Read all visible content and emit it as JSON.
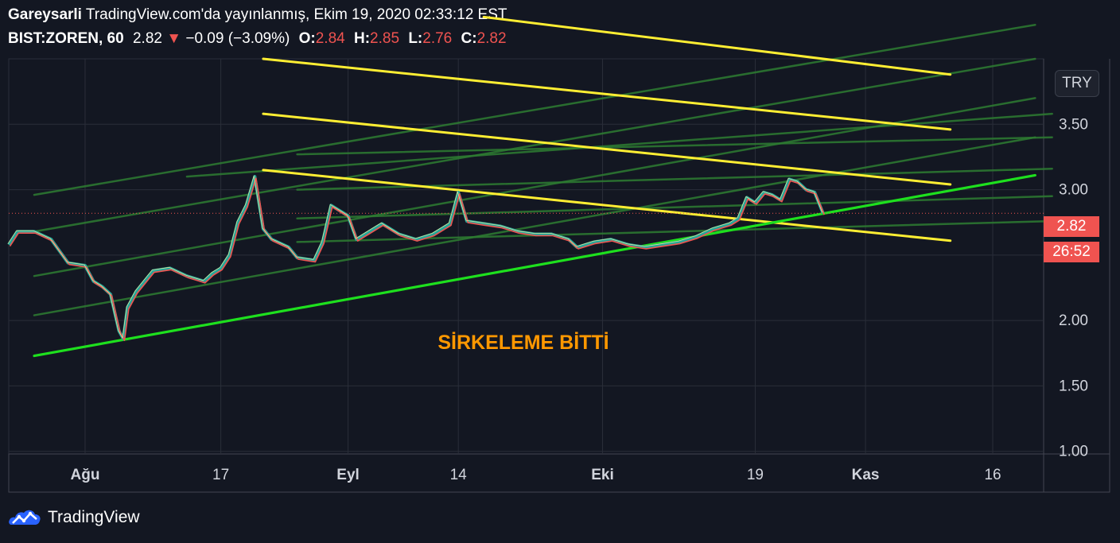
{
  "header": {
    "author": "Gareysarli",
    "published": "TradingView.com'da yayınlanmış, Ekim 19, 2020 02:33:12 EST",
    "symbol": "BIST:ZOREN, 60",
    "last": "2.82",
    "arrow": "▼",
    "change": "−0.09 (−3.09%)",
    "o_label": "O:",
    "o": "2.84",
    "h_label": "H:",
    "h": "2.85",
    "l_label": "L:",
    "l": "2.76",
    "c_label": "C:",
    "c": "2.82"
  },
  "currency_button": "TRY",
  "price_badge": "2.82",
  "countdown_badge": "26:52",
  "footer": {
    "brand": "TradingView",
    "logo_icon": "tradingview-logo-icon"
  },
  "colors": {
    "background": "#131722",
    "trend_support": "#1ee01e",
    "channel": "#ffee33",
    "fan": "#2e7d32",
    "annotation": "#ff9800",
    "down": "#ef5350"
  },
  "chart_data": {
    "type": "line",
    "title": "",
    "annotation": "SİRKELEME BİTTİ",
    "y_axis": {
      "ticks": [
        1.0,
        1.5,
        2.0,
        2.5,
        3.0,
        3.5
      ],
      "tick_labels": [
        "1.00",
        "1.50",
        "2.00",
        "2.50",
        "3.00",
        "3.50"
      ],
      "ylim": [
        0.98,
        4.0
      ]
    },
    "x_axis": {
      "ticks": [
        {
          "label": "Ağu",
          "day": 0,
          "bold": true
        },
        {
          "label": "17",
          "day": 16,
          "bold": false
        },
        {
          "label": "Eyl",
          "day": 31,
          "bold": true
        },
        {
          "label": "14",
          "day": 44,
          "bold": false
        },
        {
          "label": "Eki",
          "day": 61,
          "bold": true
        },
        {
          "label": "19",
          "day": 79,
          "bold": false
        },
        {
          "label": "Kas",
          "day": 92,
          "bold": true
        },
        {
          "label": "16",
          "day": 107,
          "bold": false
        }
      ],
      "xlim": [
        -9,
        113
      ],
      "unit": "days since Aug 1, 2020"
    },
    "last_price": 2.82,
    "series": [
      {
        "name": "",
        "values": [
          [
            -9,
            2.58
          ],
          [
            -8,
            2.68
          ],
          [
            -6,
            2.68
          ],
          [
            -4,
            2.62
          ],
          [
            -2,
            2.44
          ],
          [
            0,
            2.42
          ],
          [
            1,
            2.3
          ],
          [
            2,
            2.26
          ],
          [
            3,
            2.2
          ],
          [
            4,
            1.92
          ],
          [
            4.5,
            1.86
          ],
          [
            5,
            2.1
          ],
          [
            6,
            2.22
          ],
          [
            7,
            2.3
          ],
          [
            8,
            2.38
          ],
          [
            10,
            2.4
          ],
          [
            12,
            2.34
          ],
          [
            14,
            2.3
          ],
          [
            15,
            2.36
          ],
          [
            16,
            2.4
          ],
          [
            17,
            2.5
          ],
          [
            18,
            2.75
          ],
          [
            19,
            2.88
          ],
          [
            20,
            3.1
          ],
          [
            21,
            2.7
          ],
          [
            22,
            2.62
          ],
          [
            24,
            2.56
          ],
          [
            25,
            2.48
          ],
          [
            27,
            2.46
          ],
          [
            28,
            2.6
          ],
          [
            29,
            2.88
          ],
          [
            30,
            2.84
          ],
          [
            31,
            2.8
          ],
          [
            32,
            2.62
          ],
          [
            34,
            2.7
          ],
          [
            35,
            2.74
          ],
          [
            37,
            2.66
          ],
          [
            39,
            2.62
          ],
          [
            41,
            2.66
          ],
          [
            43,
            2.74
          ],
          [
            44,
            2.98
          ],
          [
            45,
            2.76
          ],
          [
            47,
            2.74
          ],
          [
            49,
            2.72
          ],
          [
            51,
            2.68
          ],
          [
            53,
            2.66
          ],
          [
            55,
            2.66
          ],
          [
            57,
            2.62
          ],
          [
            58,
            2.56
          ],
          [
            60,
            2.6
          ],
          [
            62,
            2.62
          ],
          [
            64,
            2.58
          ],
          [
            66,
            2.56
          ],
          [
            68,
            2.58
          ],
          [
            70,
            2.6
          ],
          [
            72,
            2.64
          ],
          [
            74,
            2.7
          ],
          [
            76,
            2.74
          ],
          [
            77,
            2.78
          ],
          [
            78,
            2.94
          ],
          [
            79,
            2.9
          ],
          [
            80,
            2.98
          ],
          [
            81,
            2.96
          ],
          [
            82,
            2.92
          ],
          [
            83,
            3.08
          ],
          [
            84,
            3.06
          ],
          [
            85,
            3.0
          ],
          [
            86,
            2.98
          ],
          [
            87,
            2.82
          ]
        ]
      }
    ],
    "lines": [
      {
        "name": "",
        "kind": "support",
        "points": [
          [
            -6,
            1.73
          ],
          [
            112,
            3.11
          ]
        ]
      },
      {
        "name": "",
        "kind": "channel",
        "points": [
          [
            21,
            3.15
          ],
          [
            102,
            2.61
          ]
        ]
      },
      {
        "name": "",
        "kind": "channel",
        "points": [
          [
            21,
            3.58
          ],
          [
            102,
            3.04
          ]
        ]
      },
      {
        "name": "",
        "kind": "channel",
        "points": [
          [
            21,
            4.0
          ],
          [
            102,
            3.46
          ]
        ]
      },
      {
        "name": "",
        "kind": "channel",
        "points": [
          [
            47,
            4.32
          ],
          [
            102,
            3.88
          ]
        ]
      },
      {
        "name": "",
        "kind": "fan",
        "points": [
          [
            -6,
            2.96
          ],
          [
            112,
            4.26
          ]
        ]
      },
      {
        "name": "",
        "kind": "fan",
        "points": [
          [
            -6,
            2.68
          ],
          [
            112,
            4.0
          ]
        ]
      },
      {
        "name": "",
        "kind": "fan",
        "points": [
          [
            -6,
            2.34
          ],
          [
            112,
            3.7
          ]
        ]
      },
      {
        "name": "",
        "kind": "fan",
        "points": [
          [
            -6,
            2.04
          ],
          [
            112,
            3.4
          ]
        ]
      },
      {
        "name": "",
        "kind": "fan",
        "points": [
          [
            25,
            3.27
          ],
          [
            114,
            3.4
          ]
        ]
      },
      {
        "name": "",
        "kind": "fan",
        "points": [
          [
            25,
            3.0
          ],
          [
            114,
            3.16
          ]
        ]
      },
      {
        "name": "",
        "kind": "fan",
        "points": [
          [
            25,
            2.78
          ],
          [
            114,
            2.95
          ]
        ]
      },
      {
        "name": "",
        "kind": "fan",
        "points": [
          [
            25,
            2.6
          ],
          [
            114,
            2.76
          ]
        ]
      },
      {
        "name": "",
        "kind": "fan",
        "points": [
          [
            12,
            3.1
          ],
          [
            114,
            3.58
          ]
        ]
      }
    ]
  }
}
